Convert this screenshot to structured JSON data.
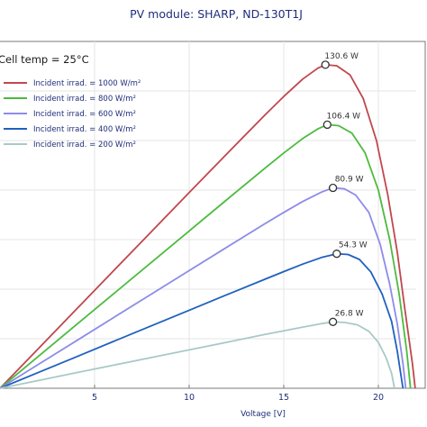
{
  "chart_data": {
    "type": "line",
    "title": "PV module:  SHARP,  ND-130T1J",
    "subtitle": "Cell temp = 25°C",
    "xlabel": "Voltage [V]",
    "ylabel": "",
    "xlim": [
      0,
      22
    ],
    "ylim": [
      0,
      140
    ],
    "x_ticks": [
      5,
      10,
      15,
      20
    ],
    "grid": true,
    "legend_position": "top-left",
    "series": [
      {
        "name": "Incident irrad. = 1000 W/m²",
        "color": "#c0474e",
        "peak": {
          "x": 17.2,
          "y": 130.6,
          "label": "130.6 W"
        },
        "points": [
          [
            0,
            0
          ],
          [
            2,
            15.8
          ],
          [
            4,
            31.6
          ],
          [
            6,
            47.4
          ],
          [
            8,
            63.2
          ],
          [
            10,
            79.0
          ],
          [
            12,
            94.7
          ],
          [
            14,
            110.3
          ],
          [
            15,
            117.8
          ],
          [
            16,
            124.8
          ],
          [
            16.8,
            129.2
          ],
          [
            17.2,
            130.6
          ],
          [
            17.8,
            130.2
          ],
          [
            18.5,
            126.5
          ],
          [
            19.2,
            117
          ],
          [
            19.9,
            100
          ],
          [
            20.5,
            78
          ],
          [
            21.0,
            55
          ],
          [
            21.4,
            32
          ],
          [
            21.8,
            10
          ],
          [
            21.95,
            0
          ]
        ]
      },
      {
        "name": "Incident irrad. = 800 W/m²",
        "color": "#4cbb3f",
        "peak": {
          "x": 17.3,
          "y": 106.4,
          "label": "106.4 W"
        },
        "points": [
          [
            0,
            0
          ],
          [
            2,
            12.7
          ],
          [
            4,
            25.4
          ],
          [
            6,
            38.1
          ],
          [
            8,
            50.8
          ],
          [
            10,
            63.5
          ],
          [
            12,
            76.2
          ],
          [
            14,
            88.8
          ],
          [
            15,
            95.0
          ],
          [
            16,
            100.8
          ],
          [
            16.8,
            104.7
          ],
          [
            17.3,
            106.4
          ],
          [
            17.9,
            106
          ],
          [
            18.6,
            103
          ],
          [
            19.3,
            95
          ],
          [
            20.0,
            80
          ],
          [
            20.6,
            60
          ],
          [
            21.1,
            38
          ],
          [
            21.5,
            15
          ],
          [
            21.7,
            0
          ]
        ]
      },
      {
        "name": "Incident irrad. = 600 W/m²",
        "color": "#8c8ce8",
        "peak": {
          "x": 17.6,
          "y": 80.9,
          "label": "80.9 W"
        },
        "points": [
          [
            0,
            0
          ],
          [
            2,
            9.5
          ],
          [
            4,
            19
          ],
          [
            6,
            28.5
          ],
          [
            8,
            38
          ],
          [
            10,
            47.5
          ],
          [
            12,
            57
          ],
          [
            14,
            66.4
          ],
          [
            15,
            71
          ],
          [
            16,
            75.4
          ],
          [
            17,
            79.2
          ],
          [
            17.6,
            80.9
          ],
          [
            18.2,
            80.5
          ],
          [
            18.8,
            78
          ],
          [
            19.5,
            71
          ],
          [
            20.1,
            58
          ],
          [
            20.6,
            42
          ],
          [
            21.0,
            26
          ],
          [
            21.3,
            10
          ],
          [
            21.45,
            0
          ]
        ]
      },
      {
        "name": "Incident irrad. = 400 W/m²",
        "color": "#2060c0",
        "peak": {
          "x": 17.8,
          "y": 54.3,
          "label": "54.3 W"
        },
        "points": [
          [
            0,
            0
          ],
          [
            2,
            6.3
          ],
          [
            4,
            12.6
          ],
          [
            6,
            18.9
          ],
          [
            8,
            25.2
          ],
          [
            10,
            31.5
          ],
          [
            12,
            37.8
          ],
          [
            14,
            44
          ],
          [
            15,
            47.1
          ],
          [
            16,
            50.1
          ],
          [
            17,
            52.8
          ],
          [
            17.8,
            54.3
          ],
          [
            18.4,
            54
          ],
          [
            19,
            52
          ],
          [
            19.6,
            47
          ],
          [
            20.2,
            38
          ],
          [
            20.7,
            27
          ],
          [
            21.0,
            15
          ],
          [
            21.2,
            5
          ],
          [
            21.3,
            0
          ]
        ]
      },
      {
        "name": "Incident irrad. = 200 W/m²",
        "color": "#a9c9c5",
        "peak": {
          "x": 17.6,
          "y": 26.8,
          "label": "26.8 W"
        },
        "points": [
          [
            0,
            0
          ],
          [
            2,
            3.1
          ],
          [
            4,
            6.2
          ],
          [
            6,
            9.3
          ],
          [
            8,
            12.4
          ],
          [
            10,
            15.5
          ],
          [
            12,
            18.6
          ],
          [
            14,
            21.7
          ],
          [
            15,
            23.2
          ],
          [
            16,
            24.7
          ],
          [
            17,
            26.1
          ],
          [
            17.6,
            26.8
          ],
          [
            18.2,
            26.6
          ],
          [
            18.9,
            25.6
          ],
          [
            19.5,
            23
          ],
          [
            20.0,
            18.5
          ],
          [
            20.4,
            12.5
          ],
          [
            20.7,
            6
          ],
          [
            20.85,
            0
          ]
        ]
      }
    ]
  }
}
